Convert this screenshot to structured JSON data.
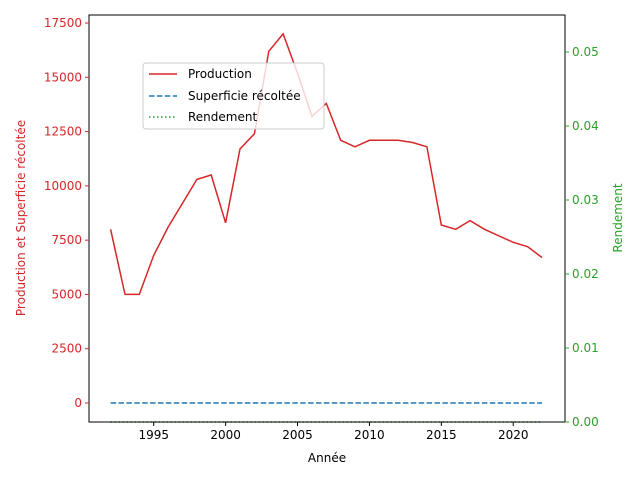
{
  "chart_data": {
    "type": "line",
    "title": "",
    "xlabel": "Année",
    "ylabel_left": "Production et Superficie récoltée",
    "ylabel_right": "Rendement",
    "xlim": [
      1990.5,
      2023.6
    ],
    "ylim_left": [
      -875,
      17870
    ],
    "ylim_right": [
      0,
      0.055
    ],
    "xticks": [
      1995,
      2000,
      2005,
      2010,
      2015,
      2020
    ],
    "yticks_left": [
      0,
      2500,
      5000,
      7500,
      10000,
      12500,
      15000,
      17500
    ],
    "yticks_right": [
      0.0,
      0.01,
      0.02,
      0.03,
      0.04,
      0.05
    ],
    "legend_position": "upper-left",
    "grid": false,
    "x": [
      1992,
      1993,
      1994,
      1995,
      1996,
      1997,
      1998,
      1999,
      2000,
      2001,
      2002,
      2003,
      2004,
      2005,
      2006,
      2007,
      2008,
      2009,
      2010,
      2011,
      2012,
      2013,
      2014,
      2015,
      2016,
      2017,
      2018,
      2019,
      2020,
      2021,
      2022
    ],
    "series": [
      {
        "name": "Production",
        "axis": "left",
        "color": "#d62728",
        "style": "solid",
        "values": [
          8000,
          5000,
          5000,
          6800,
          8100,
          9200,
          10300,
          10500,
          8300,
          11700,
          12400,
          16200,
          17000,
          15200,
          13200,
          13800,
          12100,
          11800,
          12100,
          12100,
          12100,
          12000,
          11800,
          8200,
          8000,
          8400,
          8000,
          7700,
          7400,
          7200,
          6700
        ]
      },
      {
        "name": "Superficie récoltée",
        "axis": "left",
        "color": "#1f77b4",
        "style": "dashed",
        "values": [
          1,
          1,
          1,
          1,
          1,
          1,
          1,
          1,
          1,
          1,
          1,
          1,
          1,
          1,
          1,
          1,
          1,
          1,
          1,
          1,
          1,
          1,
          1,
          1,
          1,
          1,
          1,
          1,
          1,
          1,
          1
        ]
      },
      {
        "name": "Rendement",
        "axis": "right",
        "color": "#2ca02c",
        "style": "dotted",
        "values": [
          0,
          0,
          0,
          0,
          0,
          0,
          0,
          0,
          0,
          0,
          0,
          0,
          0,
          0,
          0,
          0,
          0,
          0,
          0,
          0,
          0,
          0,
          0,
          0,
          0,
          0,
          0,
          0,
          0,
          0,
          0
        ]
      }
    ]
  }
}
